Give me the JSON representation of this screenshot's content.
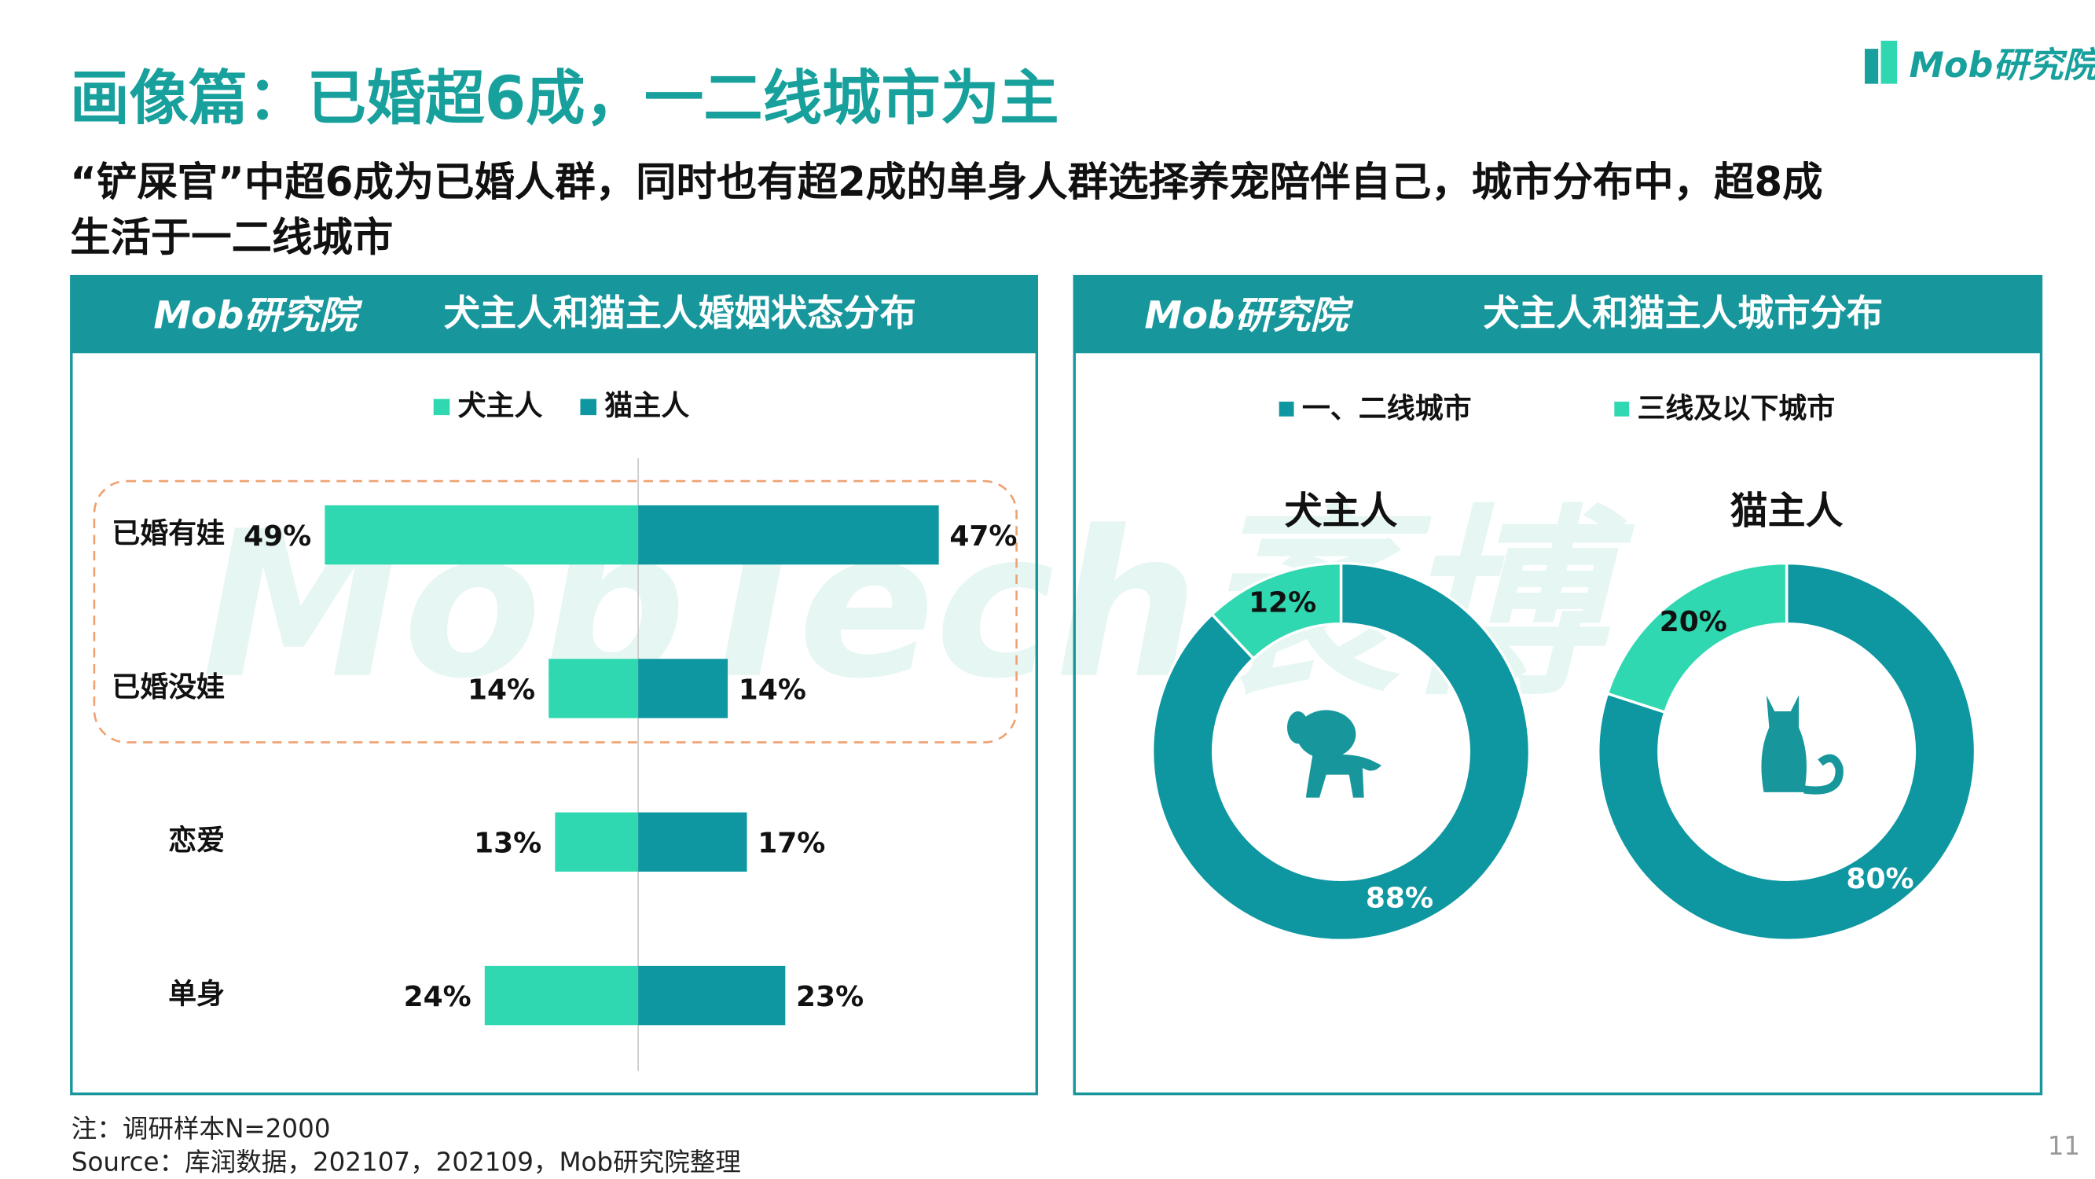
{
  "header": {
    "title": "画像篇：已婚超6成，一二线城市为主",
    "subtitle_lines": [
      "“铲屎官”中超6成为已婚人群，同时也有超2成的单身人群选择养宠陪伴自己，城市分布中，超8成",
      "生活于一二线城市"
    ],
    "logo": "Mob研究院"
  },
  "watermark": "MobTech袤博",
  "chart_data": [
    {
      "type": "butterfly",
      "title": "犬主人和猫主人婚姻状态分布",
      "logo": "Mob研究院",
      "categories": [
        "已婚有娃",
        "已婚没娃",
        "恋爱",
        "单身"
      ],
      "series": [
        {
          "name": "犬主人",
          "color": "#2fd8b1",
          "values": [
            49,
            14,
            13,
            24
          ],
          "value_labels": [
            "49%",
            "14%",
            "13%",
            "24%"
          ]
        },
        {
          "name": "猫主人",
          "color": "#0e97a0",
          "values": [
            47,
            14,
            17,
            23
          ],
          "value_labels": [
            "47%",
            "14%",
            "17%",
            "23%"
          ]
        }
      ]
    },
    {
      "type": "pie",
      "title": "犬主人和猫主人城市分布",
      "logo": "Mob研究院",
      "categories": [
        "一、二线城市",
        "三线及以下城市"
      ],
      "colors": [
        "#0e97a0",
        "#2fd8b1"
      ],
      "pies": [
        {
          "title": "犬主人",
          "values": [
            88,
            12
          ],
          "value_labels": [
            "88%",
            "12%"
          ]
        },
        {
          "title": "猫主人",
          "values": [
            80,
            20
          ],
          "value_labels": [
            "80%",
            "20%"
          ]
        }
      ]
    }
  ],
  "footer": {
    "note": "注：调研样本N=2000",
    "source": "Source：库润数据，202107，202109，Mob研究院整理",
    "page": "11"
  }
}
